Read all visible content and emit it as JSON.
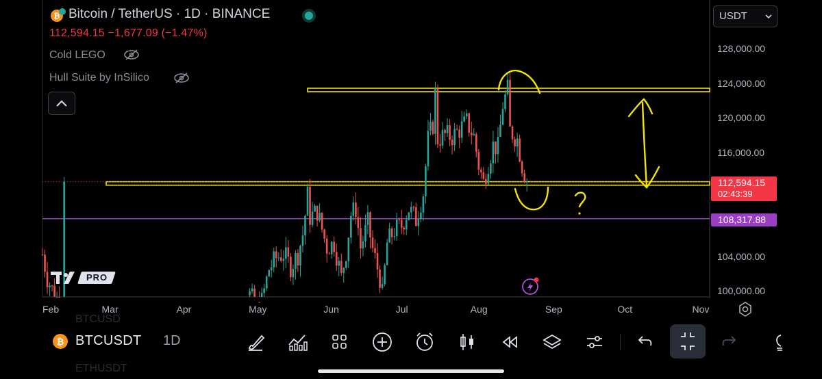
{
  "legend": {
    "title": "Bitcoin / TetherUS · 1D · BINANCE",
    "quote": "112,594.15  −1,677.09 (−1.47%)",
    "indicators": [
      "Cold LEGO",
      "Hull Suite by InSilico"
    ]
  },
  "price_scale": {
    "currency": "USDT",
    "ticks": [
      "128,000.00",
      "124,000.00",
      "120,000.00",
      "116,000.00",
      "104,000.00",
      "100,000.00"
    ],
    "current_price": "112,594.15",
    "countdown": "02:43:39",
    "line_level": "108,317.88"
  },
  "time_axis": [
    "Feb",
    "Mar",
    "Apr",
    "May",
    "Jun",
    "Jul",
    "Aug",
    "Sep",
    "Oct",
    "Nov"
  ],
  "branding": {
    "pro": "PRO"
  },
  "toolbar": {
    "symbol": "BTCUSDT",
    "interval": "1D",
    "ghost_symbol_top": "BTCUSD",
    "ghost_symbol_bottom": "ETHUSDT",
    "icons": [
      "brush-icon",
      "indicators-icon",
      "grid-icon",
      "add-icon",
      "alert-clock-icon",
      "candles-icon",
      "replay-icon",
      "layers-icon",
      "settings-sliders-icon",
      "undo-icon",
      "collapse-icon",
      "redo-icon",
      "bulb-icon"
    ]
  },
  "annotations": {
    "question": "?"
  },
  "colors": {
    "up": "#26a69a",
    "down": "#ef5350",
    "yellow": "#f5e600",
    "purple": "#b14fd9",
    "price_tag": "#f23645",
    "purple_tag": "#9c3fc6"
  },
  "chart_data": {
    "type": "candlestick",
    "title": "Bitcoin / TetherUS · 1D · BINANCE",
    "xlabel": "",
    "ylabel": "",
    "ylim": [
      100000,
      130000
    ],
    "grid": false,
    "levels": {
      "resistance_box": [
        123000,
        123400
      ],
      "support_box": [
        112200,
        112600
      ],
      "last_price": 112594.15,
      "purple_line": 108317.88
    },
    "x_range": [
      "2025-02-01",
      "2025-11-02"
    ],
    "months": [
      {
        "label": "Feb",
        "date": "2025-02-01"
      },
      {
        "label": "Mar",
        "date": "2025-03-01"
      },
      {
        "label": "Apr",
        "date": "2025-04-01"
      },
      {
        "label": "May",
        "date": "2025-05-01"
      },
      {
        "label": "Jun",
        "date": "2025-06-01"
      },
      {
        "label": "Jul",
        "date": "2025-07-01"
      },
      {
        "label": "Aug",
        "date": "2025-08-01"
      },
      {
        "label": "Sep",
        "date": "2025-09-01"
      },
      {
        "label": "Oct",
        "date": "2025-10-01"
      },
      {
        "label": "Nov",
        "date": "2025-11-01"
      }
    ],
    "close_path": [
      [
        "2025-02-01",
        104200
      ],
      [
        "2025-02-03",
        101500
      ],
      [
        "2025-02-06",
        99500
      ],
      [
        "2025-02-10",
        98000
      ],
      [
        "2025-04-28",
        99500
      ],
      [
        "2025-05-02",
        97500
      ],
      [
        "2025-05-06",
        102500
      ],
      [
        "2025-05-09",
        103800
      ],
      [
        "2025-05-12",
        104300
      ],
      [
        "2025-05-15",
        102800
      ],
      [
        "2025-05-18",
        104200
      ],
      [
        "2025-05-20",
        106500
      ],
      [
        "2025-05-22",
        111000
      ],
      [
        "2025-05-23",
        108500
      ],
      [
        "2025-05-26",
        109200
      ],
      [
        "2025-05-30",
        105000
      ],
      [
        "2025-06-02",
        105500
      ],
      [
        "2025-06-05",
        101500
      ],
      [
        "2025-06-07",
        104500
      ],
      [
        "2025-06-09",
        108800
      ],
      [
        "2025-06-11",
        109500
      ],
      [
        "2025-06-13",
        105000
      ],
      [
        "2025-06-16",
        107800
      ],
      [
        "2025-06-18",
        104800
      ],
      [
        "2025-06-21",
        101500
      ],
      [
        "2025-06-22",
        99500
      ],
      [
        "2025-06-24",
        105500
      ],
      [
        "2025-06-27",
        107000
      ],
      [
        "2025-06-30",
        107500
      ],
      [
        "2025-07-03",
        109500
      ],
      [
        "2025-07-06",
        108200
      ],
      [
        "2025-07-09",
        111300
      ],
      [
        "2025-07-11",
        117500
      ],
      [
        "2025-07-13",
        119200
      ],
      [
        "2025-07-14",
        122800
      ],
      [
        "2025-07-15",
        117500
      ],
      [
        "2025-07-18",
        118000
      ],
      [
        "2025-07-21",
        117800
      ],
      [
        "2025-07-24",
        118600
      ],
      [
        "2025-07-27",
        119500
      ],
      [
        "2025-07-30",
        117800
      ],
      [
        "2025-08-01",
        114500
      ],
      [
        "2025-08-03",
        112500
      ],
      [
        "2025-08-05",
        114800
      ],
      [
        "2025-08-07",
        116800
      ],
      [
        "2025-08-09",
        116500
      ],
      [
        "2025-08-11",
        121500
      ],
      [
        "2025-08-13",
        123200
      ],
      [
        "2025-08-14",
        118500
      ],
      [
        "2025-08-17",
        117500
      ],
      [
        "2025-08-19",
        114500
      ],
      [
        "2025-08-21",
        112594.15
      ]
    ]
  }
}
